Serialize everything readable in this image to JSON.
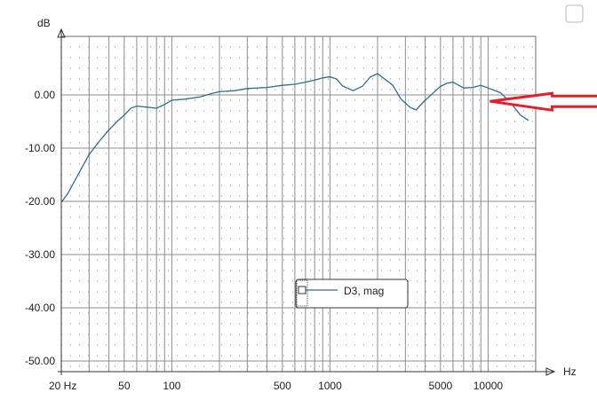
{
  "window": {
    "checkbox_icon": "checkbox-icon"
  },
  "chart_data": {
    "type": "line",
    "xscale": "log",
    "xlim": [
      20,
      20000
    ],
    "ylim": [
      -52,
      11
    ],
    "xlabel": "Hz",
    "ylabel": "dB",
    "x_ticks": [
      20,
      50,
      100,
      500,
      1000,
      5000,
      10000
    ],
    "x_tick_labels": [
      "20 Hz",
      "50",
      "100",
      "500",
      "1000",
      "5000",
      "10000"
    ],
    "y_ticks": [
      0,
      -10,
      -20,
      -30,
      -40,
      -50
    ],
    "y_tick_labels": [
      "0.00",
      "-10.00",
      "-20.00",
      "-30.00",
      "-40.00",
      "-50.00"
    ],
    "grid": true,
    "legend_position": "bottom-center",
    "series": [
      {
        "name": "D3, mag",
        "color": "#336b8c",
        "x": [
          20,
          22,
          25,
          28,
          30,
          35,
          40,
          45,
          50,
          55,
          60,
          70,
          80,
          90,
          100,
          120,
          150,
          180,
          200,
          250,
          300,
          400,
          500,
          600,
          700,
          800,
          900,
          1000,
          1100,
          1200,
          1400,
          1600,
          1800,
          2000,
          2500,
          2800,
          3200,
          3500,
          4000,
          5000,
          5500,
          6000,
          7000,
          8000,
          9000,
          10000,
          12000,
          14000,
          16000,
          18000
        ],
        "y": [
          -20.2,
          -18.5,
          -15.5,
          -12.8,
          -11.2,
          -8.6,
          -6.6,
          -5.0,
          -3.8,
          -2.5,
          -2.1,
          -2.3,
          -2.5,
          -1.8,
          -1.0,
          -0.8,
          -0.4,
          0.3,
          0.6,
          0.8,
          1.2,
          1.4,
          1.8,
          2.0,
          2.4,
          2.8,
          3.2,
          3.4,
          3.0,
          1.7,
          0.8,
          1.6,
          3.4,
          4.0,
          1.8,
          -0.7,
          -2.3,
          -2.8,
          -1.0,
          1.6,
          2.2,
          2.4,
          1.3,
          1.4,
          1.8,
          1.3,
          0.4,
          -1.6,
          -3.8,
          -4.8
        ]
      }
    ],
    "annotation": {
      "type": "arrow",
      "color": "#e0202a",
      "points_to": {
        "x": 10000,
        "y": -1.2
      }
    }
  }
}
